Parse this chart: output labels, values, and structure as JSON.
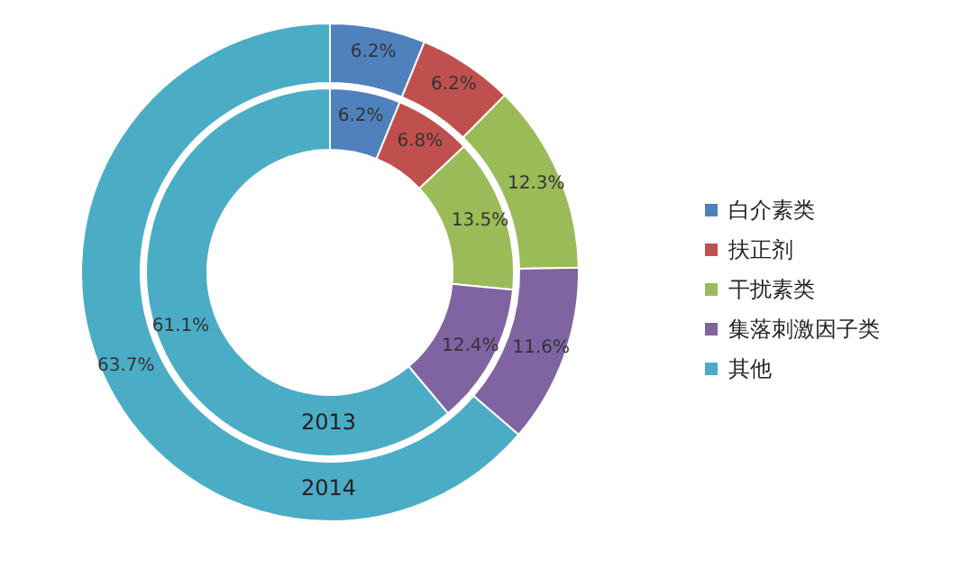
{
  "chart_data": {
    "type": "donut",
    "categories": [
      "白介素类",
      "扶正剂",
      "干扰素类",
      "集落刺激因子类",
      "其他"
    ],
    "colors": [
      "#4f81bd",
      "#c0504d",
      "#9bbb59",
      "#8064a2",
      "#4bacc6"
    ],
    "series": [
      {
        "name": "2013",
        "values": [
          6.2,
          6.8,
          13.5,
          12.4,
          61.1
        ],
        "value_labels": [
          "6.2%",
          "6.8%",
          "13.5%",
          "12.4%",
          "61.1%"
        ]
      },
      {
        "name": "2014",
        "values": [
          6.2,
          6.2,
          12.3,
          11.6,
          63.7
        ],
        "value_labels": [
          "6.2%",
          "6.2%",
          "12.3%",
          "11.6%",
          "63.7%"
        ]
      }
    ],
    "legend": "right"
  }
}
